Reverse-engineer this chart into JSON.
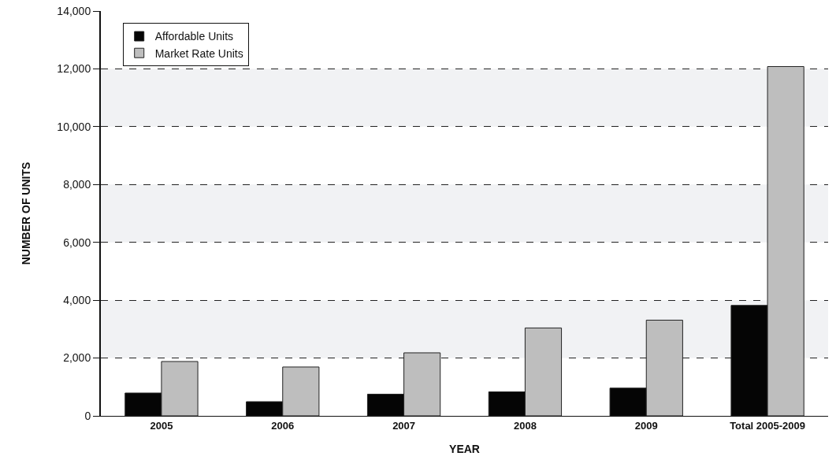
{
  "chart_data": {
    "type": "bar",
    "xlabel": "YEAR",
    "ylabel": "NUMBER OF UNITS",
    "categories": [
      "2005",
      "2006",
      "2007",
      "2008",
      "2009",
      "Total 2005-2009"
    ],
    "series": [
      {
        "name": "Affordable Units",
        "color": "#050505",
        "values": [
          790,
          490,
          750,
          830,
          960,
          3820
        ]
      },
      {
        "name": "Market Rate Units",
        "color": "#bebebe",
        "values": [
          1880,
          1690,
          2180,
          3040,
          3310,
          12080
        ]
      }
    ],
    "ylim": [
      0,
      14000
    ],
    "yticks": [
      {
        "value": 0,
        "label": "0"
      },
      {
        "value": 2000,
        "label": "2,000"
      },
      {
        "value": 4000,
        "label": "4,000"
      },
      {
        "value": 6000,
        "label": "6,000"
      },
      {
        "value": 8000,
        "label": "8,000"
      },
      {
        "value": 10000,
        "label": "10,000"
      },
      {
        "value": 12000,
        "label": "12,000"
      },
      {
        "value": 14000,
        "label": "14,000"
      }
    ],
    "bands": [
      {
        "axis": "y",
        "from": 2000,
        "to": 4000,
        "color": "#f1f2f4"
      },
      {
        "axis": "y",
        "from": 6000,
        "to": 8000,
        "color": "#f1f2f4"
      },
      {
        "axis": "y",
        "from": 10000,
        "to": 12000,
        "color": "#f1f2f4"
      }
    ],
    "grid": "y",
    "legend": "top left",
    "line_style": "dashed"
  }
}
